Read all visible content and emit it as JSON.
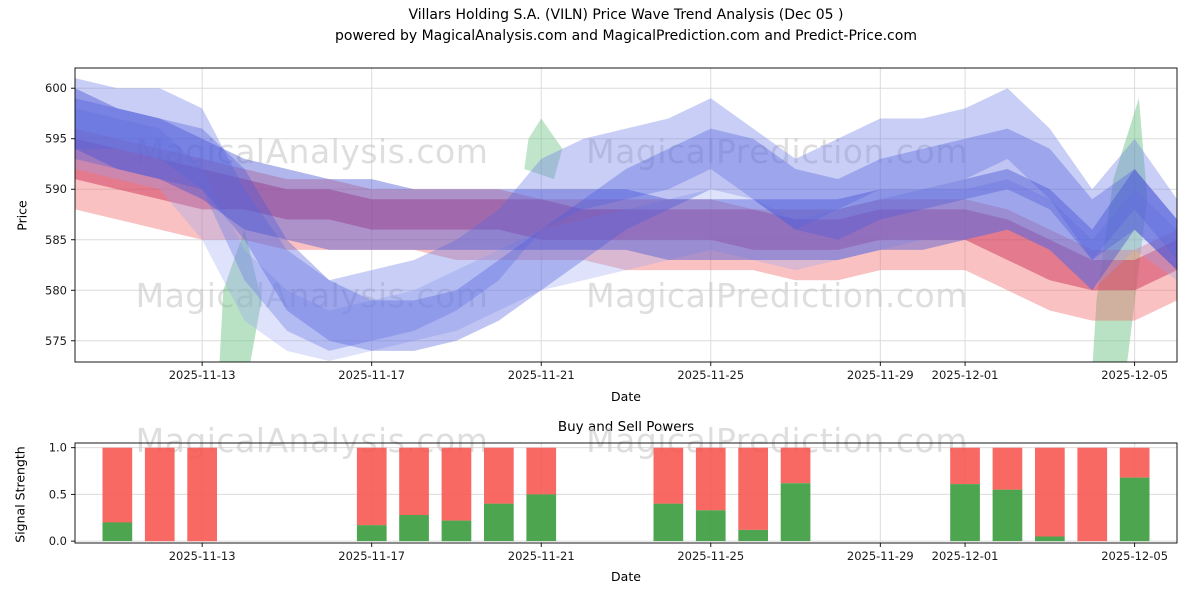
{
  "figure": {
    "title_line1": "Villars Holding S.A. (VILN) Price Wave Trend Analysis (Dec 05 )",
    "title_line2": "powered by MagicalAnalysis.com and MagicalPrediction.com and Predict-Price.com",
    "watermark_left": "MagicalAnalysis.com",
    "watermark_right": "MagicalPrediction.com",
    "background": "#ffffff"
  },
  "chart_data": [
    {
      "id": "price-wave",
      "type": "area",
      "ylabel": "Price",
      "xlabel": "Date",
      "ylim": [
        572.9,
        602
      ],
      "yticks": [
        575,
        580,
        585,
        590,
        595,
        600
      ],
      "x_days_range": [
        0,
        26
      ],
      "x_epoch": "2025-11-10",
      "grid": true,
      "xticks": [
        {
          "day": 3,
          "label": "2025-11-13"
        },
        {
          "day": 7,
          "label": "2025-11-17"
        },
        {
          "day": 11,
          "label": "2025-11-21"
        },
        {
          "day": 15,
          "label": "2025-11-25"
        },
        {
          "day": 19,
          "label": "2025-11-29"
        },
        {
          "day": 21,
          "label": "2025-12-01"
        },
        {
          "day": 25,
          "label": "2025-12-05"
        }
      ],
      "bands": [
        {
          "name": "red-outer",
          "color": "#f06c6c",
          "opacity": 0.42,
          "x": [
            0,
            1,
            2,
            3,
            4,
            5,
            6,
            7,
            8,
            9,
            10,
            11,
            12,
            13,
            14,
            15,
            16,
            17,
            18,
            19,
            20,
            21,
            22,
            23,
            24,
            25,
            26
          ],
          "upper": [
            596,
            595,
            594,
            593,
            592,
            591,
            591,
            590,
            590,
            590,
            590,
            589,
            589,
            589,
            589,
            589,
            588,
            588,
            588,
            589,
            589,
            589,
            588,
            586,
            584,
            584,
            586
          ],
          "lower": [
            588,
            587,
            586,
            585,
            585,
            584,
            584,
            584,
            584,
            583,
            583,
            583,
            583,
            582,
            582,
            582,
            582,
            581,
            581,
            582,
            582,
            582,
            580,
            578,
            577,
            577,
            579
          ]
        },
        {
          "name": "red-core",
          "color": "#d23f63",
          "opacity": 0.55,
          "x": [
            0,
            1,
            2,
            3,
            4,
            5,
            6,
            7,
            8,
            9,
            10,
            11,
            12,
            13,
            14,
            15,
            16,
            17,
            18,
            19,
            20,
            21,
            22,
            23,
            24,
            25,
            26
          ],
          "upper": [
            595,
            594,
            593,
            592,
            591,
            590,
            590,
            589,
            589,
            589,
            589,
            589,
            588,
            588,
            588,
            588,
            588,
            587,
            587,
            588,
            588,
            588,
            587,
            585,
            583,
            583,
            585
          ],
          "lower": [
            591,
            590,
            589,
            588,
            588,
            587,
            587,
            586,
            586,
            586,
            586,
            585,
            585,
            585,
            585,
            585,
            584,
            584,
            584,
            585,
            585,
            585,
            583,
            581,
            580,
            580,
            582
          ]
        },
        {
          "name": "blue-light-low",
          "color": "#97a5f2",
          "opacity": 0.32,
          "x": [
            0,
            1,
            2,
            3,
            4,
            5,
            6,
            7,
            8,
            9,
            10,
            11,
            12,
            13,
            14,
            15,
            16,
            17,
            18,
            19,
            20,
            21,
            22,
            23,
            24,
            25,
            26
          ],
          "upper": [
            598,
            597,
            596,
            592,
            584,
            580,
            578,
            579,
            580,
            582,
            584,
            586,
            587,
            588,
            589,
            590,
            589,
            587,
            588,
            589,
            590,
            590,
            591,
            589,
            585,
            590,
            586
          ],
          "lower": [
            592,
            591,
            590,
            585,
            577,
            574,
            573,
            574,
            575,
            576,
            578,
            580,
            581,
            582,
            583,
            584,
            583,
            582,
            583,
            584,
            585,
            585,
            586,
            584,
            580,
            584,
            581
          ]
        },
        {
          "name": "blue-outer",
          "color": "#6e7fe6",
          "opacity": 0.38,
          "x": [
            0,
            1,
            2,
            3,
            4,
            5,
            6,
            7,
            8,
            9,
            10,
            11,
            12,
            13,
            14,
            15,
            16,
            17,
            18,
            19,
            20,
            21,
            22,
            23,
            24,
            25,
            26
          ],
          "upper": [
            601,
            600,
            600,
            598,
            590,
            584,
            581,
            582,
            583,
            585,
            588,
            593,
            595,
            596,
            597,
            599,
            596,
            593,
            595,
            597,
            597,
            598,
            600,
            596,
            590,
            595,
            589
          ],
          "lower": [
            594,
            594,
            593,
            590,
            581,
            576,
            574,
            575,
            576,
            578,
            581,
            586,
            588,
            589,
            590,
            592,
            589,
            586,
            588,
            590,
            590,
            591,
            593,
            589,
            583,
            588,
            583
          ]
        },
        {
          "name": "blue-mid",
          "color": "#5763dd",
          "opacity": 0.38,
          "x": [
            0,
            1,
            2,
            3,
            4,
            5,
            6,
            7,
            8,
            9,
            10,
            11,
            12,
            13,
            14,
            15,
            16,
            17,
            18,
            19,
            20,
            21,
            22,
            23,
            24,
            25,
            26
          ],
          "upper": [
            599,
            598,
            597,
            596,
            592,
            585,
            581,
            579,
            579,
            580,
            583,
            586,
            589,
            592,
            594,
            596,
            595,
            592,
            591,
            593,
            594,
            595,
            596,
            594,
            589,
            592,
            587
          ],
          "lower": [
            593,
            592,
            591,
            590,
            585,
            578,
            575,
            574,
            574,
            575,
            577,
            580,
            583,
            586,
            588,
            590,
            589,
            586,
            585,
            587,
            588,
            589,
            590,
            588,
            583,
            586,
            582
          ]
        },
        {
          "name": "blue-flat",
          "color": "#4450d4",
          "opacity": 0.42,
          "x": [
            0,
            1,
            2,
            3,
            4,
            5,
            6,
            7,
            8,
            9,
            10,
            11,
            12,
            13,
            14,
            15,
            16,
            17,
            18,
            19,
            20,
            21,
            22,
            23,
            24,
            25,
            26
          ],
          "upper": [
            600,
            598,
            597,
            595,
            593,
            592,
            591,
            591,
            590,
            590,
            590,
            590,
            590,
            590,
            589,
            589,
            589,
            589,
            589,
            590,
            590,
            591,
            592,
            590,
            586,
            592,
            587
          ],
          "lower": [
            594,
            592,
            591,
            589,
            586,
            585,
            584,
            584,
            584,
            584,
            584,
            584,
            584,
            584,
            583,
            583,
            583,
            583,
            583,
            584,
            584,
            585,
            586,
            584,
            580,
            586,
            582
          ]
        }
      ],
      "patches": [
        {
          "name": "green-patch-left",
          "color": "#74c689",
          "opacity": 0.5,
          "points": [
            [
              3.4,
              572
            ],
            [
              4.1,
              572
            ],
            [
              4.4,
              579
            ],
            [
              4.0,
              586
            ],
            [
              3.5,
              580
            ]
          ]
        },
        {
          "name": "green-patch-mid",
          "color": "#74c689",
          "opacity": 0.45,
          "points": [
            [
              10.6,
              592
            ],
            [
              11.3,
              591
            ],
            [
              11.5,
              594
            ],
            [
              11.0,
              597
            ],
            [
              10.7,
              595
            ]
          ]
        },
        {
          "name": "green-patch-right",
          "color": "#74c689",
          "opacity": 0.5,
          "points": [
            [
              24.0,
              572
            ],
            [
              24.8,
              572
            ],
            [
              25.3,
              589
            ],
            [
              25.1,
              599
            ],
            [
              24.5,
              591
            ],
            [
              24.1,
              579
            ]
          ]
        }
      ]
    },
    {
      "id": "buy-sell-powers",
      "type": "bar",
      "title": "Buy and Sell Powers",
      "ylabel": "Signal Strength",
      "xlabel": "Date",
      "ylim": [
        -0.02,
        1.05
      ],
      "yticks": [
        0.0,
        0.5,
        1.0
      ],
      "x_days_range": [
        0,
        26
      ],
      "x_epoch": "2025-11-10",
      "bar_width_days": 0.7,
      "buy_color": "#43a047",
      "sell_color": "#f8544f",
      "xticks": [
        {
          "day": 3,
          "label": "2025-11-13"
        },
        {
          "day": 7,
          "label": "2025-11-17"
        },
        {
          "day": 11,
          "label": "2025-11-21"
        },
        {
          "day": 15,
          "label": "2025-11-25"
        },
        {
          "day": 19,
          "label": "2025-11-29"
        },
        {
          "day": 21,
          "label": "2025-12-01"
        },
        {
          "day": 25,
          "label": "2025-12-05"
        }
      ],
      "bars": [
        {
          "date": "2025-11-11",
          "day": 1,
          "buy": 0.2,
          "sell": 0.8
        },
        {
          "date": "2025-11-12",
          "day": 2,
          "buy": 0.0,
          "sell": 1.0
        },
        {
          "date": "2025-11-13",
          "day": 3,
          "buy": 0.0,
          "sell": 1.0
        },
        {
          "date": "2025-11-17",
          "day": 7,
          "buy": 0.17,
          "sell": 0.83
        },
        {
          "date": "2025-11-18",
          "day": 8,
          "buy": 0.28,
          "sell": 0.72
        },
        {
          "date": "2025-11-19",
          "day": 9,
          "buy": 0.22,
          "sell": 0.78
        },
        {
          "date": "2025-11-20",
          "day": 10,
          "buy": 0.4,
          "sell": 0.6
        },
        {
          "date": "2025-11-21",
          "day": 11,
          "buy": 0.5,
          "sell": 0.5
        },
        {
          "date": "2025-11-24",
          "day": 14,
          "buy": 0.4,
          "sell": 0.6
        },
        {
          "date": "2025-11-25",
          "day": 15,
          "buy": 0.33,
          "sell": 0.67
        },
        {
          "date": "2025-11-26",
          "day": 16,
          "buy": 0.12,
          "sell": 0.88
        },
        {
          "date": "2025-11-27",
          "day": 17,
          "buy": 0.62,
          "sell": 0.38
        },
        {
          "date": "2025-12-01",
          "day": 21,
          "buy": 0.61,
          "sell": 0.39
        },
        {
          "date": "2025-12-02",
          "day": 22,
          "buy": 0.55,
          "sell": 0.45
        },
        {
          "date": "2025-12-03",
          "day": 23,
          "buy": 0.05,
          "sell": 0.95
        },
        {
          "date": "2025-12-04",
          "day": 24,
          "buy": 0.0,
          "sell": 1.0
        },
        {
          "date": "2025-12-05",
          "day": 25,
          "buy": 0.68,
          "sell": 0.32
        }
      ]
    }
  ]
}
